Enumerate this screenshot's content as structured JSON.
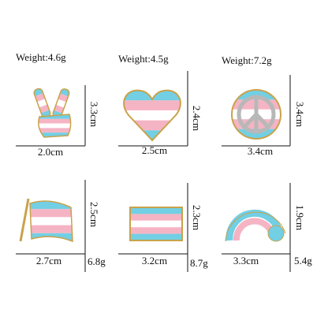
{
  "items": [
    {
      "weight": "Weight:4.6g",
      "height": "3.3cm",
      "width": "2.0cm"
    },
    {
      "weight": "Weight:4.5g",
      "height": "2.4cm",
      "width": "2.5cm"
    },
    {
      "weight": "Weight:7.2g",
      "height": "3.4cm",
      "width": "3.4cm"
    },
    {
      "weight": "6.8g",
      "height": "2.5cm",
      "width": "2.7cm"
    },
    {
      "weight": "8.7g",
      "height": "2.3cm",
      "width": "3.2cm"
    },
    {
      "weight": "5.4g",
      "height": "1.9cm",
      "width": "3.3cm"
    }
  ]
}
